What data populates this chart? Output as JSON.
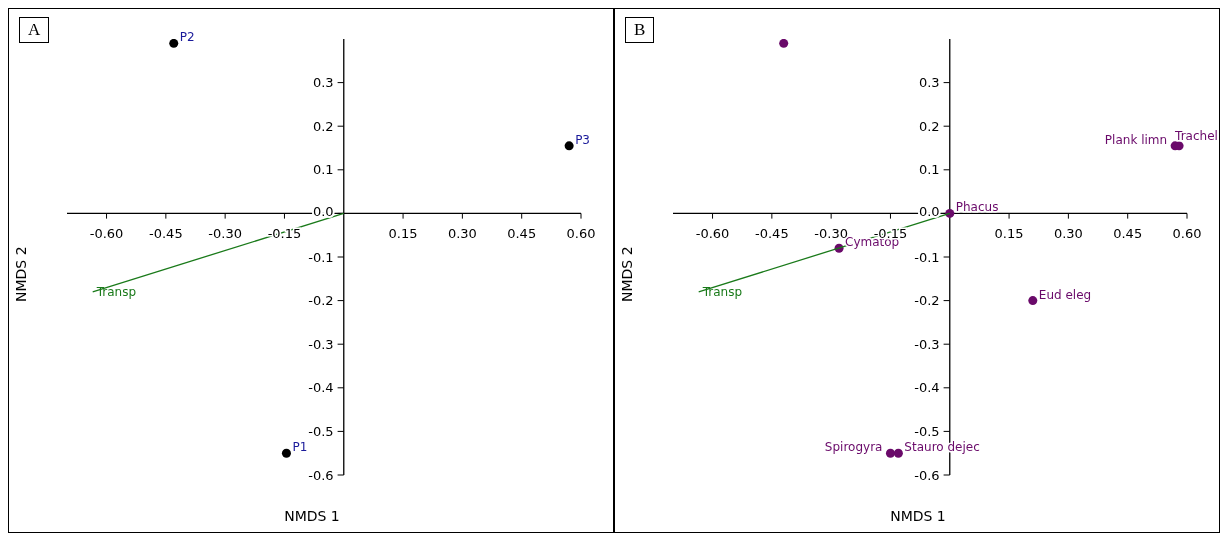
{
  "chart_data": [
    {
      "type": "scatter",
      "title": "A",
      "xlabel": "NMDS 1",
      "ylabel": "NMDS 2",
      "marker": "circle",
      "xlim": [
        -0.7,
        0.6
      ],
      "ylim": [
        -0.6,
        0.4
      ],
      "xticks": [
        {
          "value": -0.6,
          "label": "-0.60"
        },
        {
          "value": -0.45,
          "label": "-0.45"
        },
        {
          "value": -0.3,
          "label": "-0.30"
        },
        {
          "value": -0.15,
          "label": "-0.15"
        },
        {
          "value": 0.15,
          "label": "0.15"
        },
        {
          "value": 0.3,
          "label": "0.30"
        },
        {
          "value": 0.45,
          "label": "0.45"
        },
        {
          "value": 0.6,
          "label": "0.60"
        }
      ],
      "yticks": [
        -0.6,
        -0.5,
        -0.4,
        -0.3,
        -0.2,
        -0.1,
        {
          "value": 0,
          "label": "0.0"
        },
        0.1,
        0.2,
        0.3
      ],
      "series": [
        {
          "type": "scatter",
          "color": "#000000",
          "x": [
            -0.145,
            -0.43,
            0.57
          ],
          "values": [
            -0.55,
            0.39,
            0.155
          ],
          "value_labels": [
            "P1",
            "P2",
            "P3"
          ]
        },
        {
          "type": "line",
          "name": "Transp",
          "color": "#1a7a1a",
          "marker": "none",
          "x": [
            -0.635,
            0
          ],
          "values": [
            -0.18,
            0
          ]
        }
      ]
    },
    {
      "type": "scatter",
      "title": "B",
      "xlabel": "NMDS 1",
      "ylabel": "NMDS 2",
      "marker": "circle",
      "xlim": [
        -0.7,
        0.6
      ],
      "ylim": [
        -0.6,
        0.4
      ],
      "xticks": [
        {
          "value": -0.6,
          "label": "-0.60"
        },
        {
          "value": -0.45,
          "label": "-0.45"
        },
        {
          "value": -0.3,
          "label": "-0.30"
        },
        {
          "value": -0.15,
          "label": "-0.15"
        },
        {
          "value": 0.15,
          "label": "0.15"
        },
        {
          "value": 0.3,
          "label": "0.30"
        },
        {
          "value": 0.45,
          "label": "0.45"
        },
        {
          "value": 0.6,
          "label": "0.60"
        }
      ],
      "yticks": [
        -0.6,
        -0.5,
        -0.4,
        -0.3,
        -0.2,
        -0.1,
        {
          "value": 0,
          "label": "0.0"
        },
        0.1,
        0.2,
        0.3
      ],
      "series": [
        {
          "type": "scatter",
          "color": "#6a0a6a",
          "x": [
            -0.42,
            0.57,
            0.58,
            0,
            -0.28,
            0.21,
            -0.15,
            -0.13
          ],
          "values": [
            0.39,
            0.155,
            0.155,
            0,
            -0.08,
            -0.2,
            -0.55,
            -0.55
          ],
          "value_labels": [
            null,
            "Plank limn",
            "Trachel",
            "Phacus",
            "Cymatop",
            "Eud eleg",
            "Spirogyra",
            "Stauro dejec"
          ]
        },
        {
          "type": "line",
          "name": "Transp",
          "color": "#1a7a1a",
          "marker": "none",
          "x": [
            -0.635,
            0
          ],
          "values": [
            -0.18,
            0
          ]
        }
      ]
    }
  ]
}
